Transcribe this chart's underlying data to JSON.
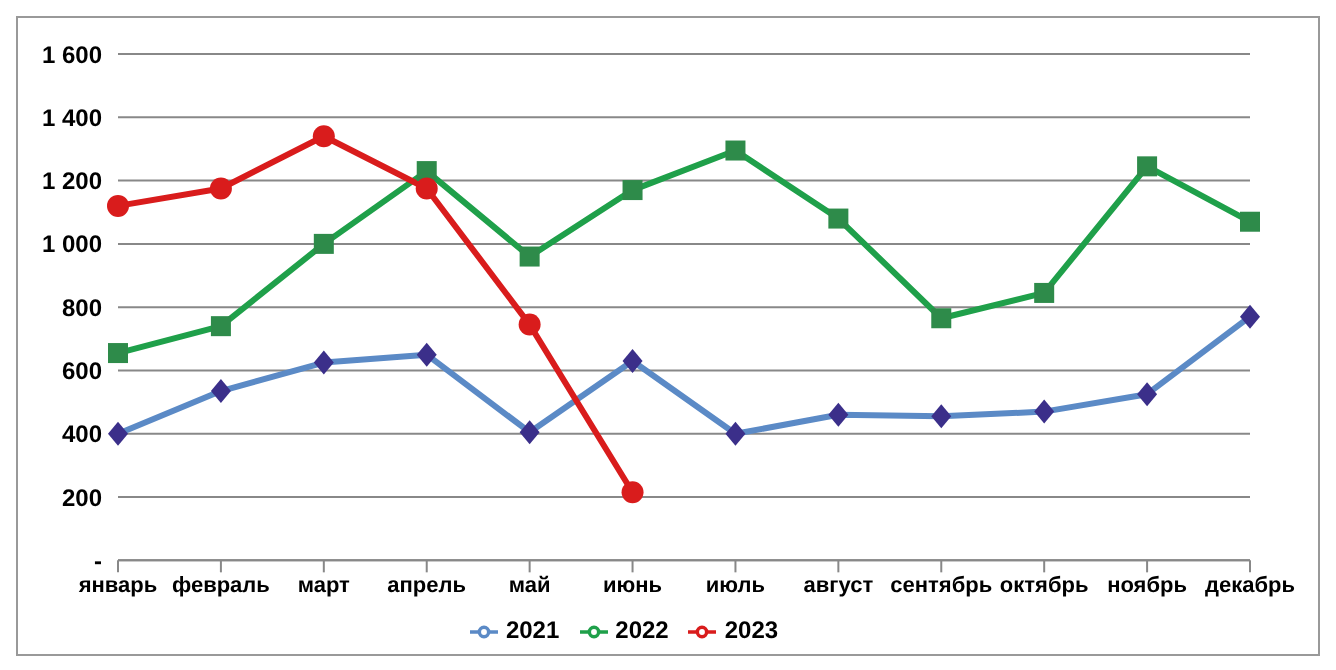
{
  "chart_data": {
    "type": "line",
    "categories": [
      "январь",
      "февраль",
      "март",
      "апрель",
      "май",
      "июнь",
      "июль",
      "август",
      "сентябрь",
      "октябрь",
      "ноябрь",
      "декабрь"
    ],
    "series": [
      {
        "name": "2021",
        "color": "#5b8ac6",
        "marker": "diamond",
        "values": [
          400,
          535,
          625,
          650,
          405,
          630,
          400,
          460,
          455,
          470,
          525,
          770
        ]
      },
      {
        "name": "2022",
        "color": "#1fa04a",
        "marker": "square",
        "values": [
          655,
          740,
          1000,
          1230,
          960,
          1170,
          1295,
          1080,
          765,
          845,
          1245,
          1070
        ]
      },
      {
        "name": "2023",
        "color": "#d91c1c",
        "marker": "circle",
        "values": [
          1120,
          1175,
          1340,
          1175,
          745,
          215,
          null,
          null,
          null,
          null,
          null,
          null
        ]
      }
    ],
    "ylim": [
      0,
      1600
    ],
    "yticks": [
      {
        "value": 0,
        "label": "-"
      },
      {
        "value": 200,
        "label": "200"
      },
      {
        "value": 400,
        "label": "400"
      },
      {
        "value": 600,
        "label": "600"
      },
      {
        "value": 800,
        "label": "800"
      },
      {
        "value": 1000,
        "label": "1 000"
      },
      {
        "value": 1200,
        "label": "1 200"
      },
      {
        "value": 1400,
        "label": "1 400"
      },
      {
        "value": 1600,
        "label": "1 600"
      }
    ],
    "grid": "y",
    "legend": "bottom",
    "line_style": "solid"
  }
}
